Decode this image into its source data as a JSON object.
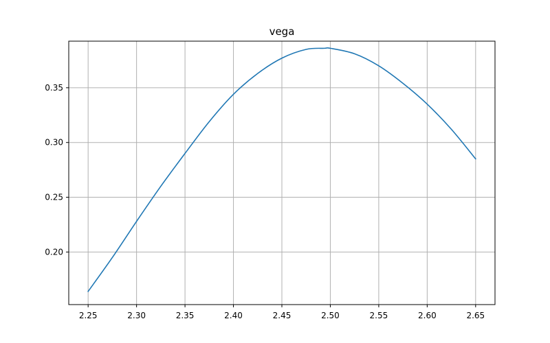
{
  "chart_data": {
    "type": "line",
    "title": "vega",
    "xlabel": "",
    "ylabel": "",
    "xlim": [
      2.23,
      2.67
    ],
    "ylim": [
      0.152,
      0.3925
    ],
    "grid": true,
    "x_ticks": [
      2.25,
      2.3,
      2.35,
      2.4,
      2.45,
      2.5,
      2.55,
      2.6,
      2.65
    ],
    "x_tick_labels": [
      "2.25",
      "2.30",
      "2.35",
      "2.40",
      "2.45",
      "2.50",
      "2.55",
      "2.60",
      "2.65"
    ],
    "y_ticks": [
      0.2,
      0.25,
      0.3,
      0.35
    ],
    "y_tick_labels": [
      "0.20",
      "0.25",
      "0.30",
      "0.35"
    ],
    "line_color": "#1f77b4",
    "grid_color": "#b0b0b0",
    "series": [
      {
        "x": [
          2.25,
          2.275,
          2.3,
          2.325,
          2.35,
          2.375,
          2.4,
          2.425,
          2.45,
          2.475,
          2.494,
          2.5,
          2.525,
          2.55,
          2.575,
          2.6,
          2.625,
          2.65
        ],
        "y": [
          0.164,
          0.195,
          0.228,
          0.26,
          0.29,
          0.319,
          0.344,
          0.363,
          0.377,
          0.385,
          0.386,
          0.386,
          0.381,
          0.37,
          0.354,
          0.335,
          0.312,
          0.285
        ]
      }
    ]
  }
}
